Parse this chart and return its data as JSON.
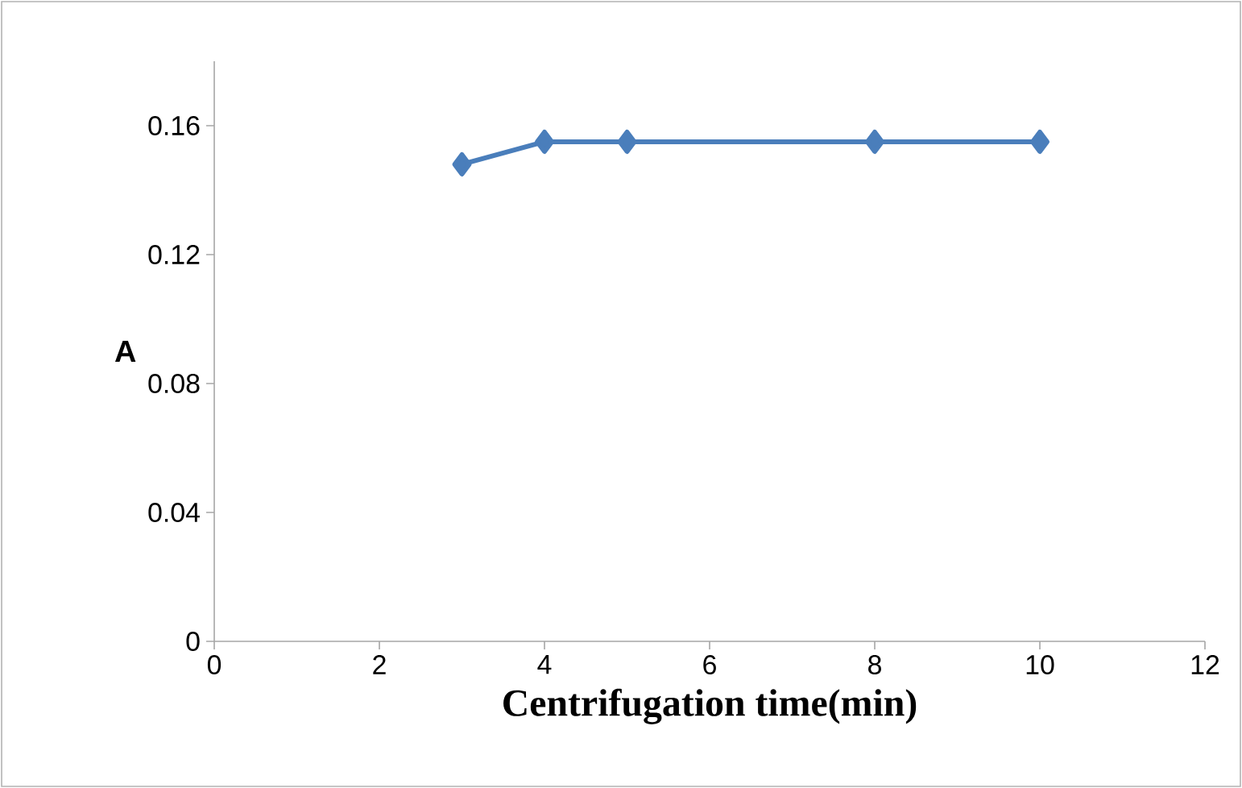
{
  "chart_data": {
    "type": "line",
    "xlabel": "Centrifugation time(min)",
    "ylabel": "A",
    "x": [
      3,
      4,
      5,
      8,
      10
    ],
    "series": [
      {
        "color": "#4a7ebb",
        "values": [
          0.148,
          0.155,
          0.155,
          0.155,
          0.155
        ]
      }
    ],
    "xlim": [
      0,
      12
    ],
    "xticks": [
      0,
      2,
      4,
      6,
      8,
      10,
      12
    ],
    "ylim": [
      0,
      0.18
    ],
    "yticks": [
      0,
      0.04,
      0.08,
      0.12,
      0.16
    ],
    "marker": "diamond",
    "line_style": "solid"
  }
}
